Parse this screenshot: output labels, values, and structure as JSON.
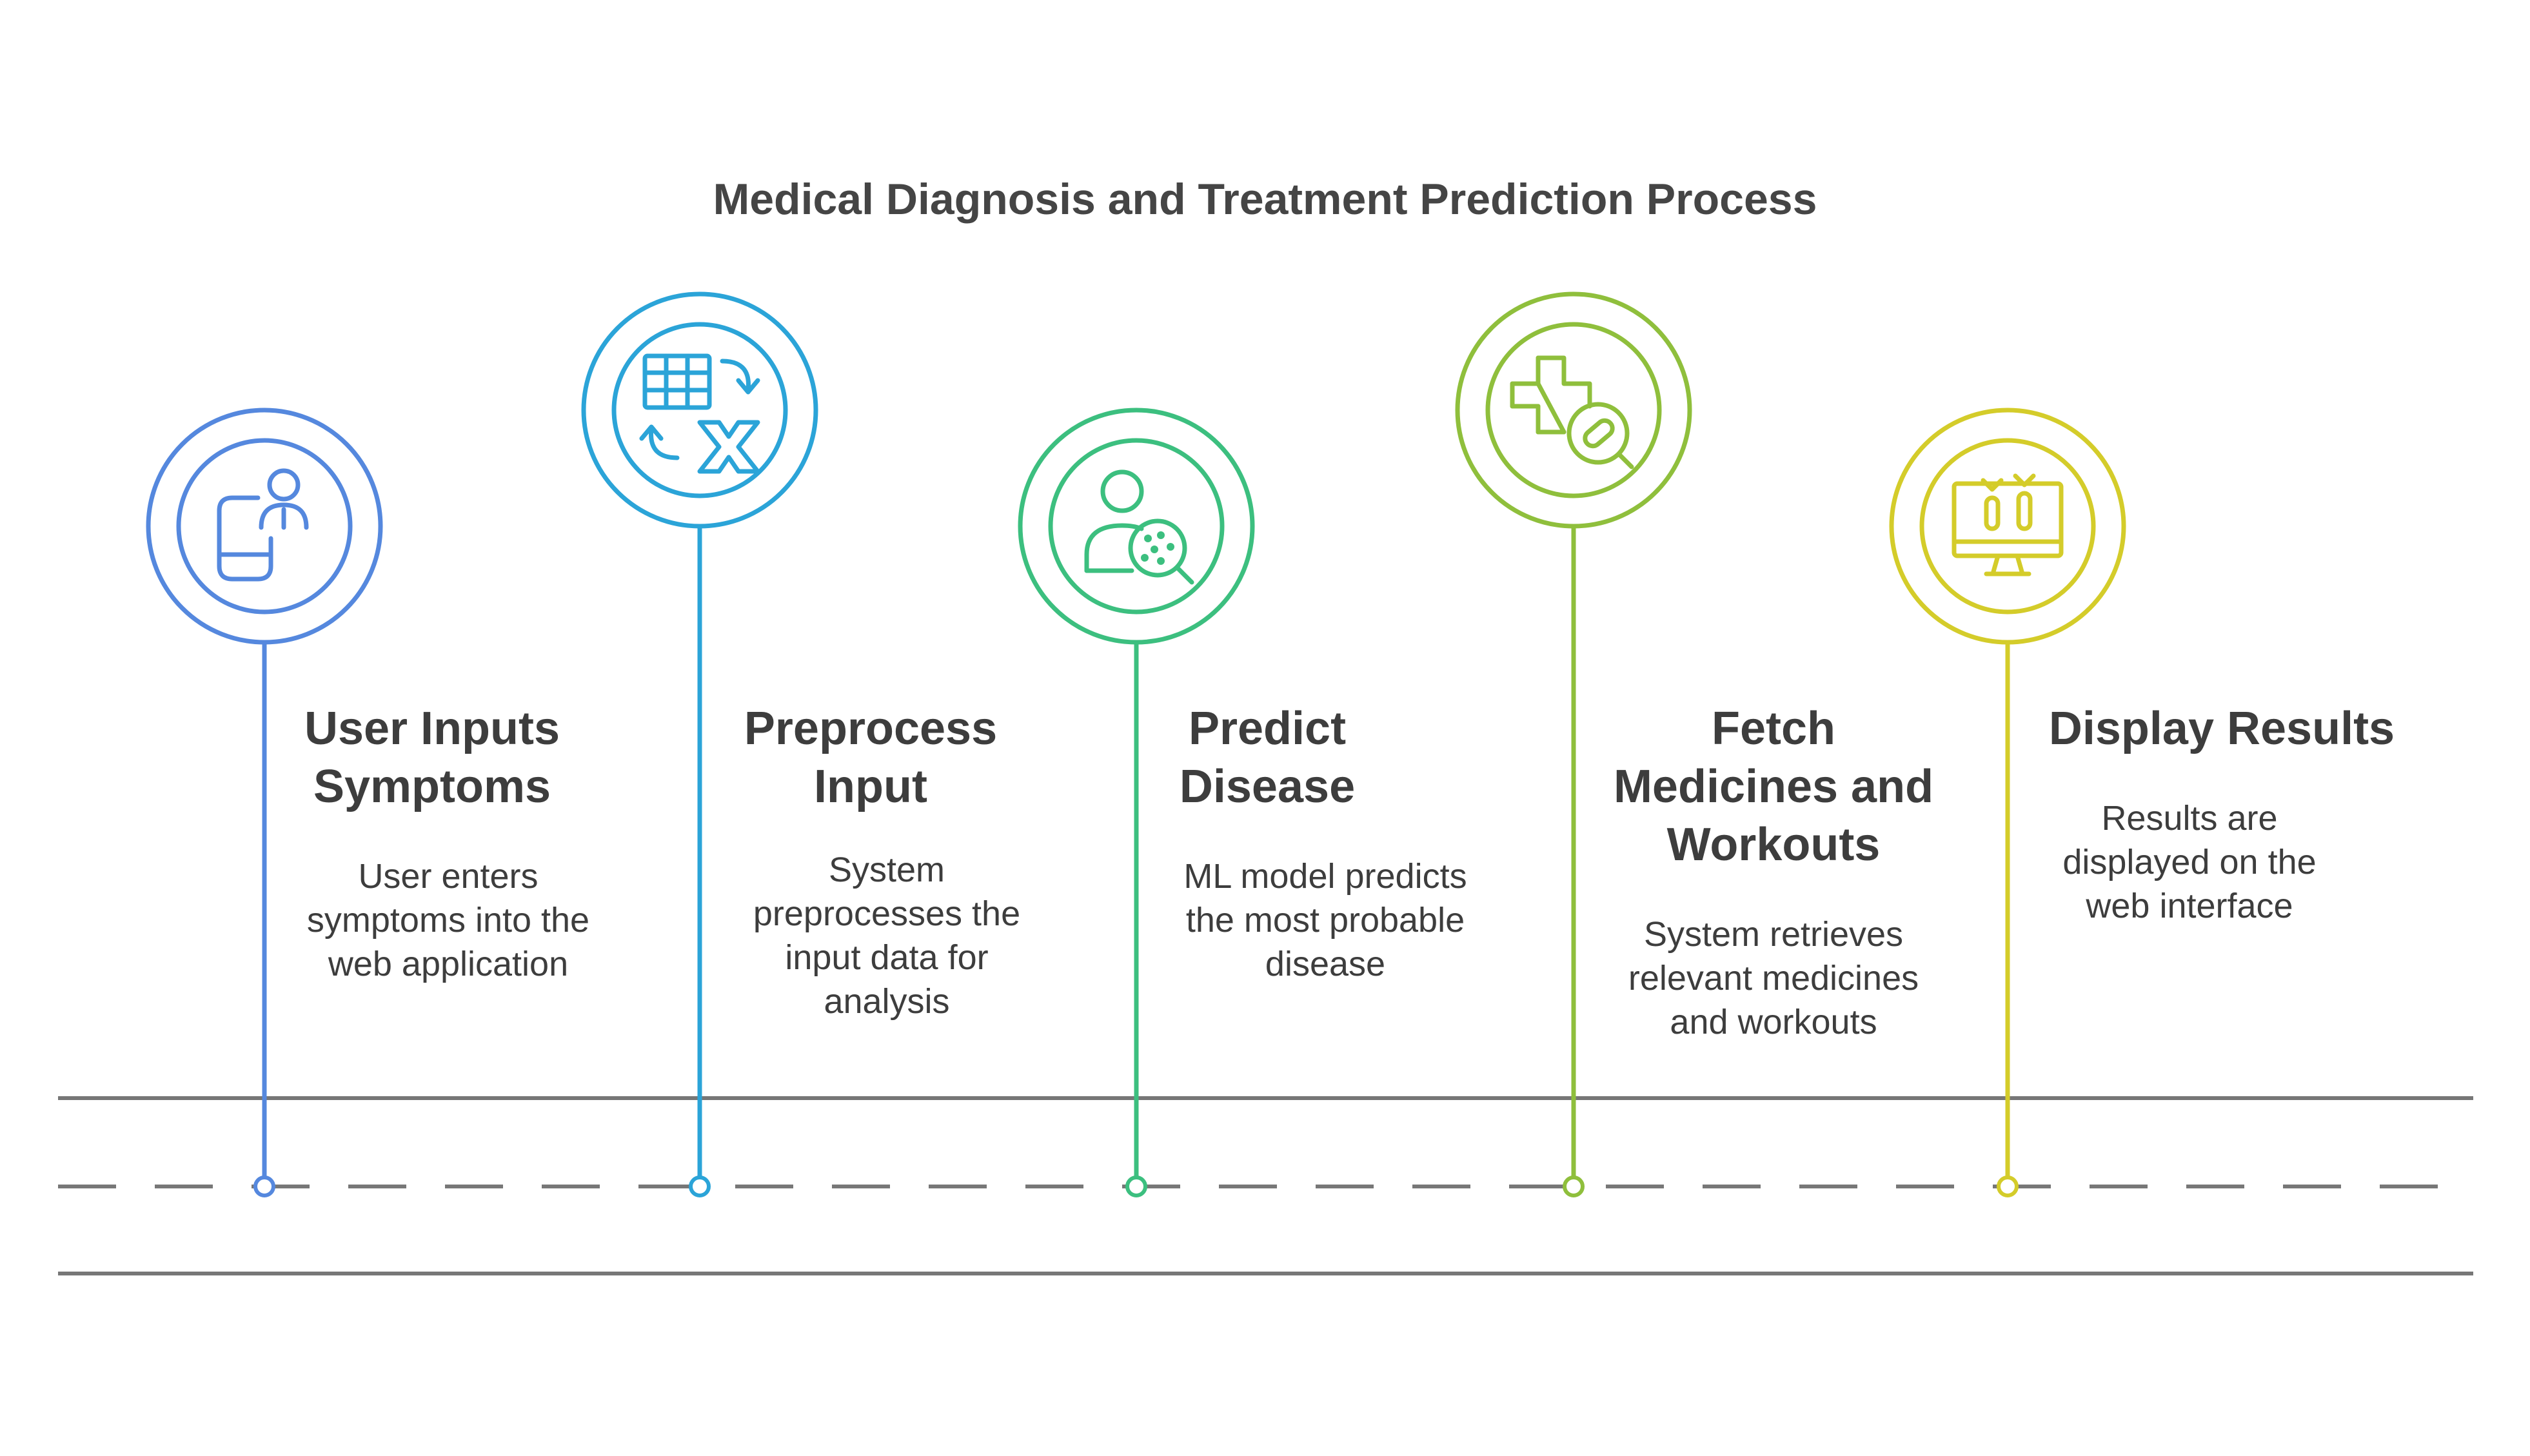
{
  "diagram": {
    "title": "Medical Diagnosis and Treatment Prediction Process",
    "steps": [
      {
        "title_line1": "User Inputs",
        "title_line2": "Symptoms",
        "desc_line1": "User enters",
        "desc_line2": "symptoms into the",
        "desc_line3": "web application",
        "icon": "user-mobile-icon",
        "color": "#5588de"
      },
      {
        "title_line1": "Preprocess",
        "title_line2": "Input",
        "desc_line1": "System",
        "desc_line2": "preprocesses the",
        "desc_line3": "input data for",
        "desc_line4": "analysis",
        "icon": "spreadsheet-transform-icon",
        "color": "#2ba4d8"
      },
      {
        "title_line1": "Predict",
        "title_line2": "Disease",
        "desc_line1": "ML model predicts",
        "desc_line2": "the most probable",
        "desc_line3": "disease",
        "icon": "user-virus-search-icon",
        "color": "#3cbf7f"
      },
      {
        "title_line1": "Fetch",
        "title_line2": "Medicines and",
        "title_line3": "Workouts",
        "desc_line1": "System retrieves",
        "desc_line2": "relevant medicines",
        "desc_line3": "and workouts",
        "icon": "medical-pill-search-icon",
        "color": "#8fbf3c"
      },
      {
        "title_line1": "Display Results",
        "desc_line1": "Results are",
        "desc_line2": "displayed on the",
        "desc_line3": "web interface",
        "icon": "monitor-results-icon",
        "color": "#d4cc2a"
      }
    ],
    "track_color": "#777777"
  }
}
